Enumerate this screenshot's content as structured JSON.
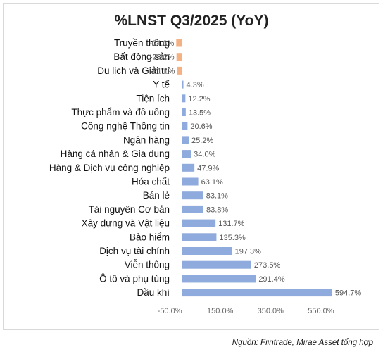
{
  "chart_data": {
    "type": "bar",
    "orientation": "horizontal",
    "title": "%LNST Q3/2025 (YoY)",
    "categories": [
      "Truyền thông",
      "Bất động sản",
      "Du lịch và Giải trí",
      "Y tế",
      "Tiện ích",
      "Thực phẩm và đồ uống",
      "Công nghệ Thông tin",
      "Ngân hàng",
      "Hàng cá nhân & Gia dụng",
      "Hàng & Dịch vụ công nghiệp",
      "Hóa chất",
      "Bán lẻ",
      "Tài nguyên Cơ bản",
      "Xây dựng và Vật liệu",
      "Bảo hiểm",
      "Dịch vụ tài chính",
      "Viễn thông",
      "Ô tô và phụ tùng",
      "Dầu khí"
    ],
    "values": [
      -24.3,
      -23.2,
      -21.1,
      4.3,
      12.2,
      13.5,
      20.6,
      25.2,
      34.0,
      47.9,
      63.1,
      83.1,
      83.8,
      131.7,
      135.3,
      197.3,
      273.5,
      291.4,
      594.7
    ],
    "value_labels": [
      "-24.3%",
      "-23.2%",
      "-21.1%",
      "4.3%",
      "12.2%",
      "13.5%",
      "20.6%",
      "25.2%",
      "34.0%",
      "47.9%",
      "63.1%",
      "83.1%",
      "83.8%",
      "131.7%",
      "135.3%",
      "197.3%",
      "273.5%",
      "291.4%",
      "594.7%"
    ],
    "xlim": [
      -50,
      650
    ],
    "xticks": [
      -50,
      150,
      350,
      550
    ],
    "xtick_labels": [
      "-50.0%",
      "150.0%",
      "350.0%",
      "550.0%"
    ],
    "colors": {
      "negative": "#f4b183",
      "positive": "#8faadc"
    },
    "grid": false
  },
  "source": "Nguồn: Fiintrade, Mirae Asset tổng hợp"
}
